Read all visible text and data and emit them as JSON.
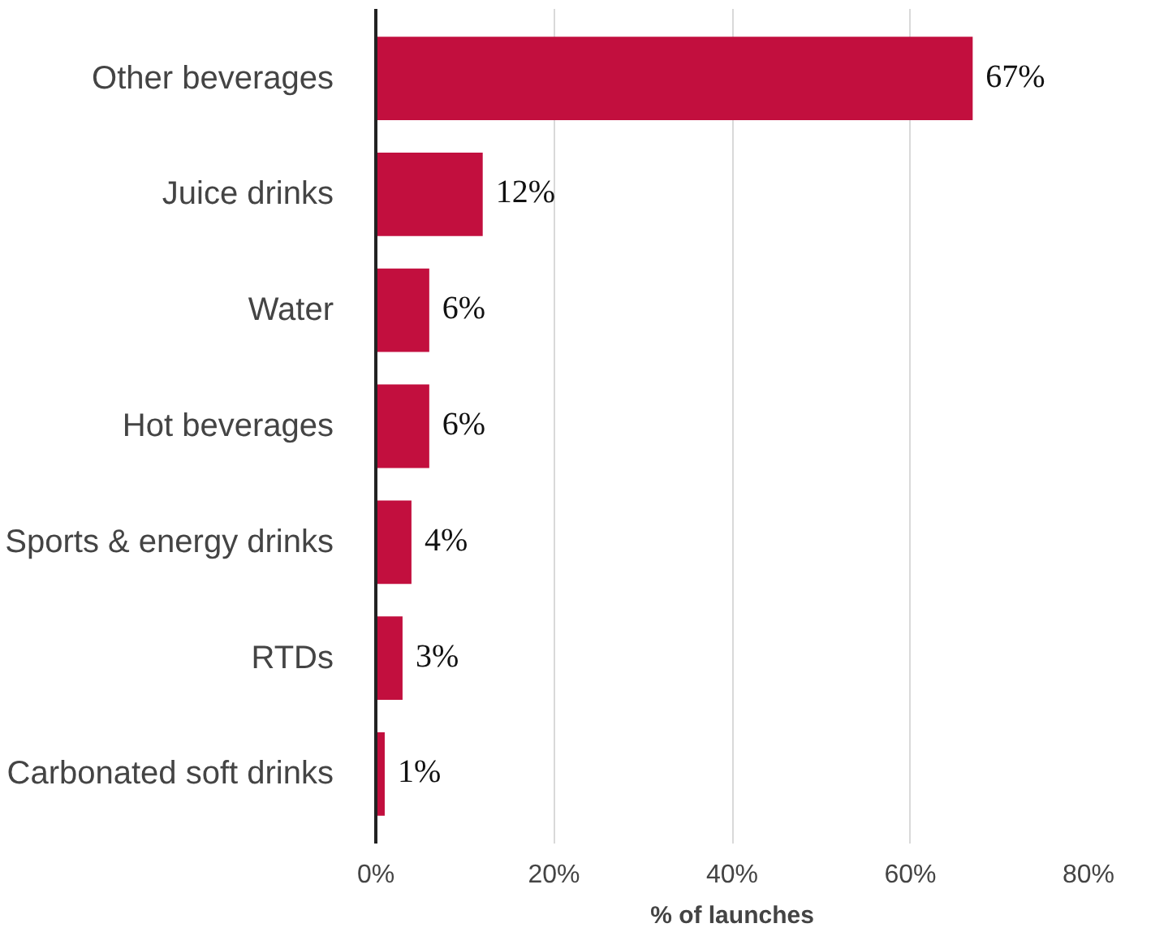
{
  "chart_data": {
    "type": "bar",
    "orientation": "horizontal",
    "xlabel": "% of launches",
    "categories": [
      "Other beverages",
      "Juice drinks",
      "Water",
      "Hot beverages",
      "Sports & energy drinks",
      "RTDs",
      "Carbonated soft drinks"
    ],
    "values": [
      67,
      12,
      6,
      6,
      4,
      3,
      1
    ],
    "color": "#c20f3e",
    "value_labels": [
      "67%",
      "12%",
      "6%",
      "6%",
      "4%",
      "3%",
      "1%"
    ],
    "xlim": [
      0,
      80
    ],
    "xticks": [
      {
        "value": 0,
        "label": "0%"
      },
      {
        "value": 20,
        "label": "20%"
      },
      {
        "value": 40,
        "label": "40%"
      },
      {
        "value": 60,
        "label": "60%"
      },
      {
        "value": 80,
        "label": "80%"
      }
    ],
    "grid": "x"
  }
}
